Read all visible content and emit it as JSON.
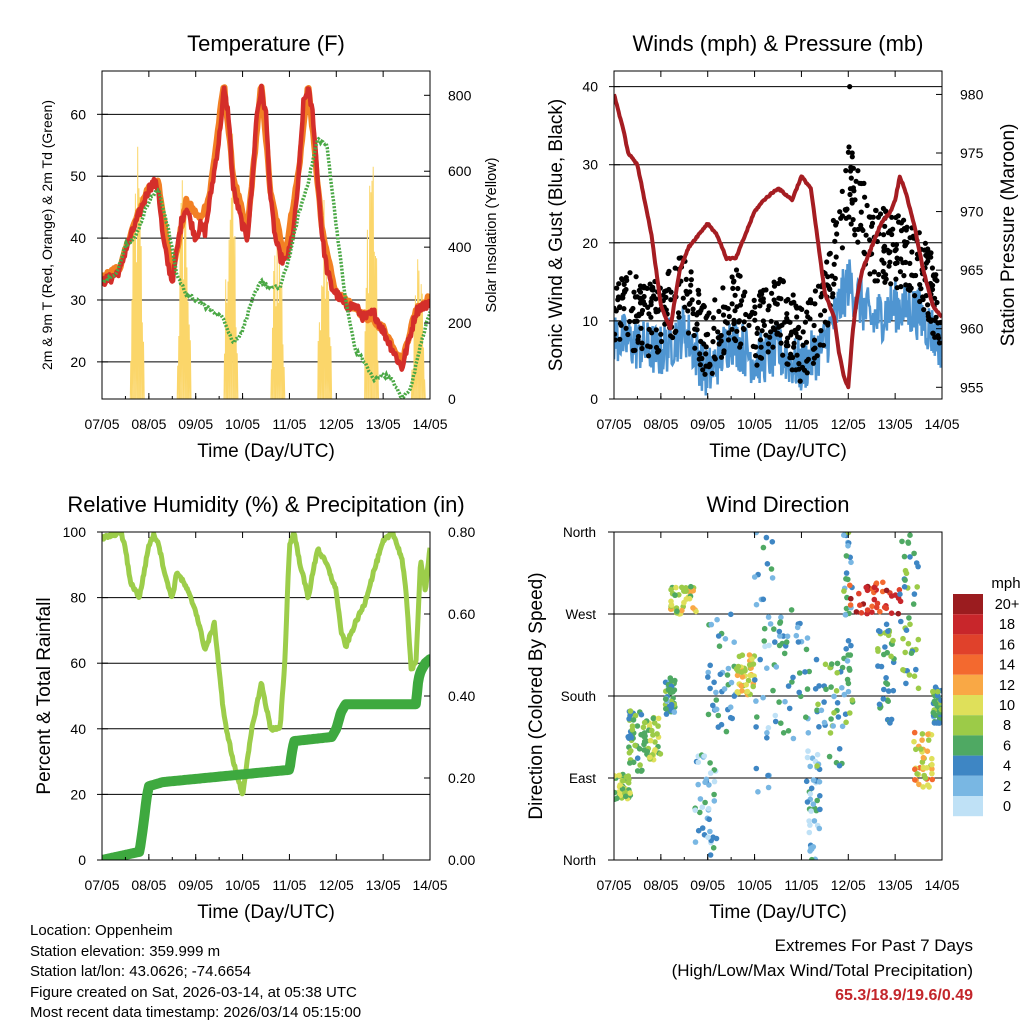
{
  "chart_data": [
    {
      "type": "line",
      "title": "Temperature (F)",
      "xlabel": "Time (Day/UTC)",
      "ylabel": "2m & 9m T (Red, Orange) & 2m Td (Green)",
      "ylabel_right": "Solar Insolation (Yellow)",
      "x_ticks": [
        "07/05",
        "08/05",
        "09/05",
        "10/05",
        "11/05",
        "12/05",
        "13/05",
        "14/05"
      ],
      "ylim": [
        14,
        67
      ],
      "yticks": [
        20,
        30,
        40,
        50,
        60
      ],
      "ylim_right": [
        0,
        864
      ],
      "yticks_right": [
        0,
        200,
        400,
        600,
        800
      ],
      "grid": true,
      "series": [
        {
          "name": "2m T",
          "color": "#d42e2a",
          "axis": "left",
          "x": [
            0,
            0.2,
            0.4,
            0.5,
            0.6,
            0.8,
            1.0,
            1.1,
            1.2,
            1.3,
            1.4,
            1.5,
            1.6,
            1.7,
            1.8,
            2.0,
            2.1,
            2.2,
            2.3,
            2.5,
            2.6,
            2.7,
            2.8,
            2.9,
            3.0,
            3.1,
            3.2,
            3.3,
            3.4,
            3.5,
            3.6,
            3.7,
            3.8,
            3.9,
            4.0,
            4.1,
            4.2,
            4.3,
            4.4,
            4.5,
            4.6,
            4.7,
            4.8,
            4.9,
            5.0,
            5.1,
            5.2,
            5.4,
            5.6,
            5.8,
            6.0,
            6.2,
            6.4,
            6.6,
            6.7,
            6.8,
            6.9,
            7.0
          ],
          "values": [
            33,
            33.5,
            35,
            38,
            40,
            44,
            48,
            49,
            48,
            40,
            36,
            33,
            38,
            43,
            45,
            40,
            42,
            41,
            46,
            56,
            64,
            60,
            48,
            45,
            42,
            40,
            48,
            60,
            64,
            60,
            46,
            40,
            37,
            36,
            38,
            42,
            50,
            62,
            64,
            60,
            50,
            40,
            35,
            32,
            31,
            30,
            29,
            29,
            27,
            28,
            25,
            22,
            19,
            25,
            28,
            29,
            29,
            30
          ]
        },
        {
          "name": "9m T",
          "color": "#f28024",
          "axis": "left",
          "x": [
            0,
            0.4,
            0.6,
            1.0,
            1.2,
            1.5,
            1.8,
            2.1,
            2.3,
            2.6,
            2.8,
            3.1,
            3.4,
            3.6,
            3.9,
            4.2,
            4.4,
            4.7,
            5.0,
            5.6,
            6.0,
            6.4,
            6.7,
            7.0
          ],
          "values": [
            33.5,
            35.5,
            40.5,
            48.5,
            49,
            34,
            46,
            43,
            47,
            65,
            50,
            41,
            65,
            47,
            37,
            51,
            65,
            41,
            31,
            27.5,
            25.5,
            20,
            28.5,
            30.5
          ]
        },
        {
          "name": "2m Td",
          "color": "#4aa845",
          "axis": "left",
          "x": [
            0,
            0.3,
            0.5,
            0.7,
            1.0,
            1.2,
            1.4,
            1.6,
            1.8,
            2.0,
            2.2,
            2.4,
            2.6,
            2.8,
            3.0,
            3.2,
            3.4,
            3.6,
            3.8,
            4.0,
            4.2,
            4.4,
            4.6,
            4.8,
            5.0,
            5.2,
            5.4,
            5.6,
            5.8,
            6.0,
            6.2,
            6.4,
            6.6,
            6.8,
            7.0
          ],
          "values": [
            33,
            34,
            39,
            40,
            46,
            48,
            42,
            34,
            31,
            30,
            29,
            28,
            27,
            23,
            25,
            30,
            33,
            32,
            32,
            37,
            44,
            49,
            56,
            55,
            42,
            30,
            22,
            20,
            17,
            18,
            17,
            14,
            16,
            23,
            28
          ]
        },
        {
          "name": "Solar Insolation",
          "color": "#fbd66a",
          "axis": "right",
          "daily_peaks": [
            720,
            680,
            760,
            560,
            660,
            820,
            420
          ]
        }
      ]
    },
    {
      "type": "line",
      "title": "Winds (mph) & Pressure (mb)",
      "xlabel": "Time (Day/UTC)",
      "ylabel": "Sonic Wind & Gust (Blue, Black)",
      "ylabel_right": "Station Pressure (Maroon)",
      "x_ticks": [
        "07/05",
        "08/05",
        "09/05",
        "10/05",
        "11/05",
        "12/05",
        "13/05",
        "14/05"
      ],
      "ylim": [
        0,
        42
      ],
      "yticks": [
        0,
        10,
        20,
        30,
        40
      ],
      "ylim_right": [
        954,
        982
      ],
      "yticks_right": [
        955,
        960,
        965,
        970,
        975,
        980
      ],
      "grid": true,
      "series": [
        {
          "name": "Sonic Wind",
          "color": "#4f95d1",
          "axis": "left",
          "x": [
            0,
            0.5,
            1.0,
            1.5,
            2.0,
            2.5,
            3.0,
            3.5,
            4.0,
            4.5,
            5.0,
            5.5,
            6.0,
            6.5,
            7.0
          ],
          "values": [
            8,
            7,
            6,
            9,
            3,
            8,
            5,
            6,
            4,
            7,
            15,
            10,
            12,
            11,
            7
          ]
        },
        {
          "name": "Gust",
          "color": "#000000",
          "axis": "left",
          "x": [
            0,
            0.5,
            1.0,
            1.5,
            2.0,
            2.5,
            3.0,
            3.5,
            4.0,
            4.5,
            5.0,
            5.5,
            6.0,
            6.5,
            7.0
          ],
          "values": [
            12,
            11,
            10,
            14,
            6,
            13,
            8,
            11,
            7,
            12,
            28,
            20,
            19,
            17,
            11
          ],
          "max": 40
        },
        {
          "name": "Station Pressure",
          "color": "#a51d22",
          "axis": "right",
          "x": [
            0,
            0.2,
            0.3,
            0.5,
            0.6,
            0.8,
            0.9,
            1.0,
            1.1,
            1.2,
            1.4,
            1.6,
            1.8,
            2.0,
            2.2,
            2.4,
            2.6,
            2.8,
            3.0,
            3.2,
            3.5,
            3.8,
            4.0,
            4.2,
            4.3,
            4.4,
            4.5,
            4.7,
            4.8,
            4.9,
            5.0,
            5.1,
            5.2,
            5.3,
            5.5,
            5.7,
            5.9,
            6.0,
            6.1,
            6.2,
            6.4,
            6.6,
            6.8,
            7.0
          ],
          "values": [
            980,
            977,
            975,
            974,
            972,
            968,
            965,
            962,
            961,
            960,
            965,
            967,
            968,
            969,
            968,
            966,
            966,
            968,
            970,
            971,
            972,
            971,
            973,
            972,
            969,
            966,
            963,
            961,
            958,
            956,
            955,
            960,
            963,
            965,
            967,
            969,
            970,
            971,
            973,
            972,
            969,
            965,
            962,
            961
          ]
        }
      ]
    },
    {
      "type": "line",
      "title": "Relative Humidity (%) & Precipitation (in)",
      "xlabel": "Time (Day/UTC)",
      "ylabel": "Percent & Total Rainfall",
      "x_ticks": [
        "07/05",
        "08/05",
        "09/05",
        "10/05",
        "11/05",
        "12/05",
        "13/05",
        "14/05"
      ],
      "ylim": [
        0,
        100
      ],
      "yticks": [
        0,
        20,
        40,
        60,
        80,
        100
      ],
      "ylim_right": [
        0,
        0.8
      ],
      "yticks_right": [
        "0.00",
        "0.20",
        "0.40",
        "0.60",
        "0.80"
      ],
      "grid": true,
      "series": [
        {
          "name": "Relative Humidity",
          "color": "#9ccd4a",
          "axis": "left",
          "x": [
            0,
            0.2,
            0.4,
            0.5,
            0.6,
            0.8,
            1.0,
            1.1,
            1.2,
            1.3,
            1.4,
            1.5,
            1.6,
            1.8,
            2.0,
            2.2,
            2.4,
            2.6,
            2.8,
            3.0,
            3.2,
            3.4,
            3.6,
            3.8,
            3.9,
            4.0,
            4.1,
            4.2,
            4.4,
            4.6,
            4.8,
            5.0,
            5.1,
            5.2,
            5.4,
            5.6,
            5.8,
            6.0,
            6.2,
            6.4,
            6.5,
            6.6,
            6.7,
            6.8,
            6.9,
            7.0
          ],
          "values": [
            98,
            99,
            100,
            95,
            85,
            80,
            96,
            99,
            97,
            90,
            84,
            80,
            88,
            83,
            76,
            64,
            72,
            44,
            30,
            20,
            40,
            54,
            40,
            40,
            60,
            96,
            100,
            92,
            80,
            95,
            90,
            82,
            70,
            65,
            72,
            78,
            88,
            97,
            100,
            92,
            80,
            58,
            60,
            92,
            82,
            95
          ]
        },
        {
          "name": "Total Precipitation",
          "color": "#3ea93f",
          "axis": "right",
          "x": [
            0,
            0.8,
            0.85,
            0.9,
            0.95,
            1.0,
            1.3,
            4.0,
            4.05,
            4.1,
            4.9,
            5.0,
            5.05,
            5.1,
            5.15,
            5.2,
            6.7,
            6.75,
            6.8,
            6.9,
            7.0
          ],
          "values": [
            0,
            0.02,
            0.06,
            0.1,
            0.15,
            0.18,
            0.19,
            0.22,
            0.26,
            0.29,
            0.3,
            0.32,
            0.34,
            0.36,
            0.37,
            0.38,
            0.38,
            0.44,
            0.46,
            0.48,
            0.49
          ]
        }
      ]
    },
    {
      "type": "scatter",
      "title": "Wind Direction",
      "xlabel": "Time (Day/UTC)",
      "ylabel": "Direction (Colored By Speed)",
      "x_ticks": [
        "07/05",
        "08/05",
        "09/05",
        "10/05",
        "11/05",
        "12/05",
        "13/05",
        "14/05"
      ],
      "yticks": [
        "North",
        "East",
        "South",
        "West",
        "North"
      ],
      "ylim": [
        0,
        360
      ],
      "grid": true,
      "colorbar": {
        "title": "mph",
        "labels": [
          "20+",
          "18",
          "16",
          "14",
          "12",
          "10",
          "8",
          "6",
          "4",
          "2",
          "0"
        ],
        "colors": [
          "#9b1c1f",
          "#c8262b",
          "#e0412b",
          "#f3692f",
          "#f9a845",
          "#dfe05a",
          "#9ccb48",
          "#4fa963",
          "#3e86c4",
          "#79b7e3",
          "#bfe1f6"
        ]
      },
      "clusters": [
        {
          "x": [
            0.0,
            0.35
          ],
          "dir": [
            65,
            95
          ],
          "speed": 8
        },
        {
          "x": [
            0.3,
            0.6
          ],
          "dir": [
            95,
            165
          ],
          "speed": 6
        },
        {
          "x": [
            0.6,
            1.0
          ],
          "dir": [
            110,
            160
          ],
          "speed": 8
        },
        {
          "x": [
            1.1,
            1.3
          ],
          "dir": [
            160,
            200
          ],
          "speed": 5
        },
        {
          "x": [
            1.2,
            1.8
          ],
          "dir": [
            270,
            300
          ],
          "speed": 9
        },
        {
          "x": [
            1.7,
            2.2
          ],
          "dir": [
            5,
            120
          ],
          "speed": 3
        },
        {
          "x": [
            2.0,
            2.6
          ],
          "dir": [
            140,
            270
          ],
          "speed": 4
        },
        {
          "x": [
            2.6,
            3.0
          ],
          "dir": [
            180,
            230
          ],
          "speed": 10
        },
        {
          "x": [
            3.0,
            3.5
          ],
          "dir": [
            60,
            360
          ],
          "speed": 3
        },
        {
          "x": [
            3.5,
            4.2
          ],
          "dir": [
            130,
            280
          ],
          "speed": 4
        },
        {
          "x": [
            4.1,
            4.4
          ],
          "dir": [
            0,
            120
          ],
          "speed": 3
        },
        {
          "x": [
            4.3,
            4.9
          ],
          "dir": [
            100,
            220
          ],
          "speed": 5
        },
        {
          "x": [
            4.9,
            5.1
          ],
          "dir": [
            150,
            360
          ],
          "speed": 5
        },
        {
          "x": [
            5.0,
            6.2
          ],
          "dir": [
            270,
            305
          ],
          "speed": 17
        },
        {
          "x": [
            5.6,
            6.0
          ],
          "dir": [
            150,
            260
          ],
          "speed": 6
        },
        {
          "x": [
            6.1,
            6.5
          ],
          "dir": [
            180,
            360
          ],
          "speed": 6
        },
        {
          "x": [
            6.4,
            6.8
          ],
          "dir": [
            80,
            140
          ],
          "speed": 11
        },
        {
          "x": [
            6.8,
            7.0
          ],
          "dir": [
            150,
            190
          ],
          "speed": 5
        }
      ]
    }
  ],
  "info": {
    "location": "Location: Oppenheim",
    "elevation": "Station elevation: 359.999 m",
    "latlon": "Station lat/lon: 43.0626; -74.6654",
    "created": "Figure created on Sat, 2026-03-14, at 05:38 UTC",
    "recent": "Most recent data timestamp: 2026/03/14 05:15:00"
  },
  "extremes": {
    "title": "Extremes For Past 7 Days",
    "subtitle": "(High/Low/Max Wind/Total Precipitation)",
    "values": "65.3/18.9/19.6/0.49"
  }
}
